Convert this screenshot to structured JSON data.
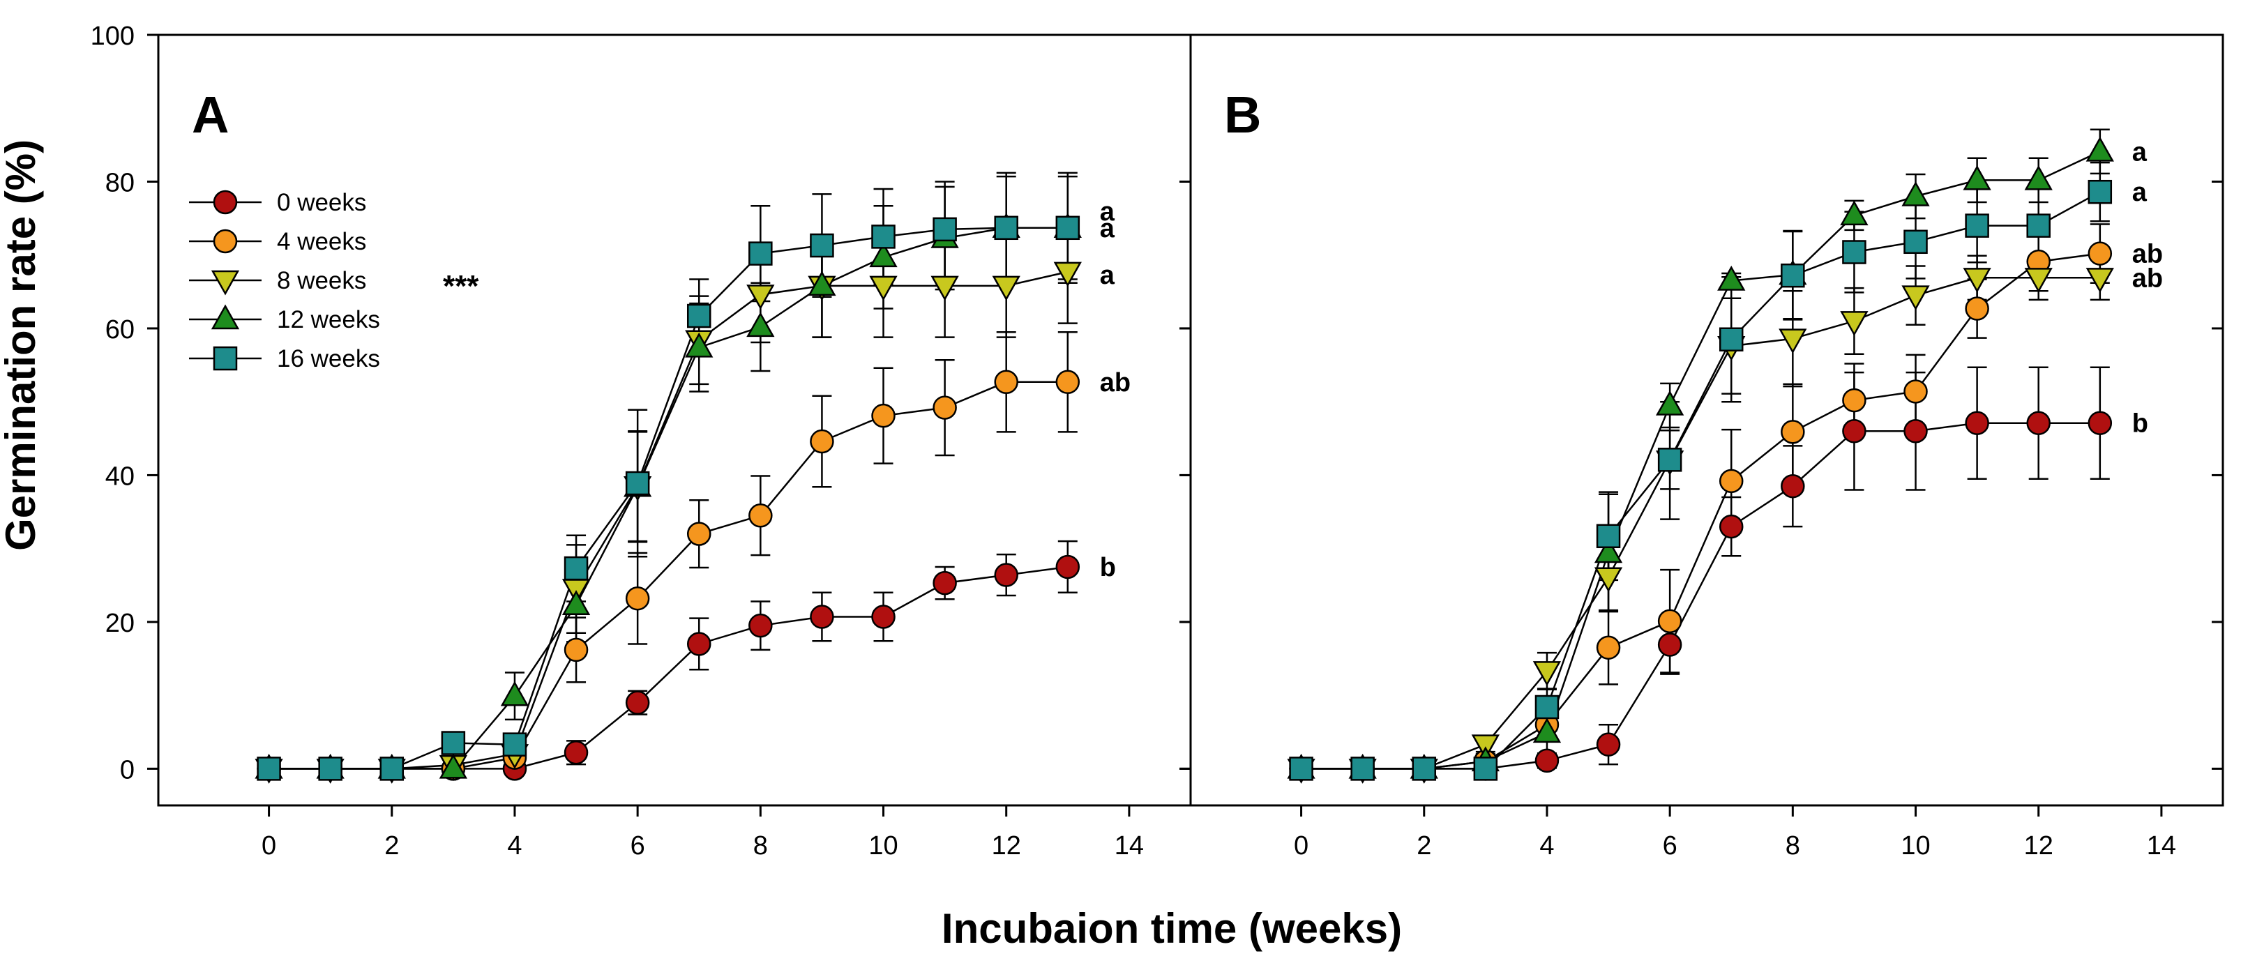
{
  "chart_data": [
    {
      "type": "line",
      "panel": "A",
      "xlabel": "Incubaion time (weeks)",
      "ylabel": "Germination rate (%)",
      "xlim": [
        -1.8,
        15
      ],
      "ylim": [
        -5,
        100
      ],
      "xticks": [
        0,
        2,
        4,
        6,
        8,
        10,
        12,
        14
      ],
      "yticks": [
        0,
        20,
        40,
        60,
        80,
        100
      ],
      "annotation": "***",
      "x": [
        0,
        1,
        2,
        3,
        4,
        5,
        6,
        7,
        8,
        9,
        10,
        11,
        12,
        13
      ],
      "series": [
        {
          "name": "0 weeks",
          "marker": "circle",
          "color": "#b01010",
          "values": [
            0,
            0,
            0,
            0,
            0,
            2.2,
            9,
            17,
            19.5,
            20.7,
            20.7,
            25.3,
            26.4,
            27.5
          ],
          "errors": [
            0,
            0,
            0,
            0,
            0,
            1.6,
            1.6,
            3.5,
            3.3,
            3.3,
            3.3,
            2.2,
            2.8,
            3.5
          ],
          "sig": "b"
        },
        {
          "name": "4 weeks",
          "marker": "circle",
          "color": "#f5961e",
          "values": [
            0,
            0,
            0,
            0,
            1.5,
            16.2,
            23.2,
            32,
            34.5,
            44.6,
            48.1,
            49.2,
            52.7,
            52.7
          ],
          "errors": [
            0,
            0,
            0,
            0,
            1.5,
            4.4,
            6.2,
            4.6,
            5.4,
            6.2,
            6.5,
            6.5,
            6.8,
            6.8
          ],
          "sig": "ab"
        },
        {
          "name": "8 weeks",
          "marker": "triangle-down",
          "color": "#c8c81e",
          "values": [
            0,
            0,
            0,
            0.5,
            2,
            24.5,
            38.5,
            58.4,
            64.6,
            65.8,
            65.8,
            65.8,
            65.8,
            67.7
          ],
          "errors": [
            0,
            0,
            0,
            0.5,
            2,
            6,
            7.5,
            6,
            6.5,
            7,
            7,
            7,
            7,
            7
          ],
          "sig": "a"
        },
        {
          "name": "12 weeks",
          "marker": "triangle-up",
          "color": "#1e8c1e",
          "values": [
            0,
            0,
            0,
            0,
            9.9,
            22.3,
            38.4,
            57.4,
            60.2,
            65.8,
            69.7,
            72.3,
            73.7,
            73.7
          ],
          "errors": [
            0,
            0,
            0,
            0,
            3.2,
            5,
            7.5,
            6,
            6,
            7,
            7,
            7,
            7,
            7
          ],
          "sig": "a"
        },
        {
          "name": "16 weeks",
          "marker": "square",
          "color": "#1e8c8c",
          "values": [
            0,
            0,
            0,
            3.5,
            3.3,
            27.3,
            38.9,
            61.7,
            70.2,
            71.3,
            72.5,
            73.5,
            73.7,
            73.7
          ],
          "errors": [
            0,
            0,
            0,
            1,
            1.5,
            4.5,
            10,
            5,
            6.5,
            7,
            6.5,
            6.5,
            7.5,
            7.5
          ],
          "sig": "a"
        }
      ],
      "legend": {
        "position": "top-left",
        "entries": [
          "0 weeks",
          "4 weeks",
          "8 weeks",
          "12 weeks",
          "16 weeks"
        ]
      }
    },
    {
      "type": "line",
      "panel": "B",
      "xlabel": "Incubaion time (weeks)",
      "ylabel": "Germination rate (%)",
      "xlim": [
        -1.8,
        15
      ],
      "ylim": [
        -5,
        100
      ],
      "xticks": [
        0,
        2,
        4,
        6,
        8,
        10,
        12,
        14
      ],
      "yticks": [
        0,
        20,
        40,
        60,
        80,
        100
      ],
      "x": [
        0,
        1,
        2,
        3,
        4,
        5,
        6,
        7,
        8,
        9,
        10,
        11,
        12,
        13
      ],
      "series": [
        {
          "name": "0 weeks",
          "marker": "circle",
          "color": "#b01010",
          "values": [
            0,
            0,
            0,
            0,
            1.1,
            3.3,
            16.9,
            33,
            38.5,
            46,
            46,
            47.1,
            47.1,
            47.1
          ],
          "errors": [
            0,
            0,
            0,
            0,
            1,
            2.7,
            4,
            4,
            5.5,
            8,
            8,
            7.6,
            7.6,
            7.6
          ],
          "sig": "b"
        },
        {
          "name": "4 weeks",
          "marker": "circle",
          "color": "#f5961e",
          "values": [
            0,
            0,
            0,
            1,
            6,
            16.5,
            20.1,
            39.2,
            45.9,
            50.2,
            51.4,
            62.7,
            69.1,
            70.2
          ],
          "errors": [
            0,
            0,
            0,
            1,
            2,
            5,
            7,
            7,
            6.5,
            5,
            5,
            4,
            4,
            4
          ],
          "sig": "ab"
        },
        {
          "name": "8 weeks",
          "marker": "triangle-down",
          "color": "#c8c81e",
          "values": [
            0,
            0,
            0,
            3.3,
            13.3,
            26.1,
            42,
            57.6,
            58.6,
            61,
            64.5,
            66.9,
            66.9,
            66.9
          ],
          "errors": [
            0,
            0,
            0,
            1,
            2.5,
            4.5,
            8,
            6.5,
            6.5,
            4.5,
            4,
            3,
            3,
            3
          ],
          "sig": "ab"
        },
        {
          "name": "12 weeks",
          "marker": "triangle-up",
          "color": "#1e8c1e",
          "values": [
            0,
            0,
            0,
            1,
            4.9,
            29.4,
            49.5,
            66.5,
            67.3,
            75.4,
            78,
            80.2,
            80.2,
            84.1
          ],
          "errors": [
            0,
            0,
            0,
            1,
            3,
            8,
            3,
            1,
            6,
            2,
            3,
            3,
            3,
            3
          ],
          "sig": "a"
        },
        {
          "name": "16 weeks",
          "marker": "square",
          "color": "#1e8c8c",
          "values": [
            0,
            0,
            0,
            0,
            8.4,
            31.7,
            42.1,
            58.5,
            67.2,
            70.4,
            71.8,
            74,
            74,
            78.6
          ],
          "errors": [
            0,
            0,
            0,
            0,
            2.5,
            6,
            4,
            8.5,
            6,
            5.5,
            5,
            5,
            5,
            4
          ],
          "sig": "a"
        }
      ]
    }
  ]
}
